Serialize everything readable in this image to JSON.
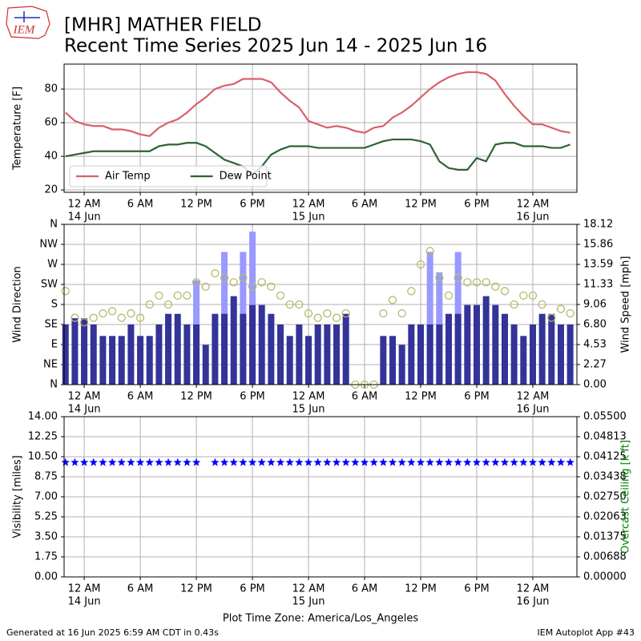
{
  "header": {
    "logo": "IEM",
    "title": "[MHR] MATHER FIELD",
    "subtitle": "Recent Time Series 2025 Jun 14 - 2025 Jun 16"
  },
  "footer": {
    "generated": "Generated at 16 Jun 2025 6:59 AM CDT in 0.43s",
    "app": "IEM Autoplot App #43"
  },
  "chart_data": [
    {
      "type": "line",
      "ylabel": "Temperature [F]",
      "grid": true,
      "legend": "lower left",
      "x": [
        "2025-06-13T22:00",
        "2025-06-13T23:00",
        "2025-06-14T00:00",
        "2025-06-14T01:00",
        "2025-06-14T02:00",
        "2025-06-14T03:00",
        "2025-06-14T04:00",
        "2025-06-14T05:00",
        "2025-06-14T06:00",
        "2025-06-14T07:00",
        "2025-06-14T08:00",
        "2025-06-14T09:00",
        "2025-06-14T10:00",
        "2025-06-14T11:00",
        "2025-06-14T12:00",
        "2025-06-14T13:00",
        "2025-06-14T14:00",
        "2025-06-14T15:00",
        "2025-06-14T16:00",
        "2025-06-14T17:00",
        "2025-06-14T18:00",
        "2025-06-14T19:00",
        "2025-06-14T20:00",
        "2025-06-14T21:00",
        "2025-06-14T22:00",
        "2025-06-14T23:00",
        "2025-06-15T00:00",
        "2025-06-15T01:00",
        "2025-06-15T02:00",
        "2025-06-15T03:00",
        "2025-06-15T04:00",
        "2025-06-15T05:00",
        "2025-06-15T06:00",
        "2025-06-15T07:00",
        "2025-06-15T08:00",
        "2025-06-15T09:00",
        "2025-06-15T10:00",
        "2025-06-15T11:00",
        "2025-06-15T12:00",
        "2025-06-15T13:00",
        "2025-06-15T14:00",
        "2025-06-15T15:00",
        "2025-06-15T16:00",
        "2025-06-15T17:00",
        "2025-06-15T18:00",
        "2025-06-15T19:00",
        "2025-06-15T20:00",
        "2025-06-15T21:00",
        "2025-06-15T22:00",
        "2025-06-15T23:00",
        "2025-06-16T00:00",
        "2025-06-16T01:00",
        "2025-06-16T02:00",
        "2025-06-16T03:00",
        "2025-06-16T04:00"
      ],
      "xlim": [
        "2025-06-13T21:51",
        "2025-06-16T04:43"
      ],
      "xticks": [
        {
          "value": "2025-06-14T00:00",
          "label": "12 AM",
          "sublabel": "14 Jun"
        },
        {
          "value": "2025-06-14T06:00",
          "label": "6 AM"
        },
        {
          "value": "2025-06-14T12:00",
          "label": "12 PM"
        },
        {
          "value": "2025-06-14T18:00",
          "label": "6 PM"
        },
        {
          "value": "2025-06-15T00:00",
          "label": "12 AM",
          "sublabel": "15 Jun"
        },
        {
          "value": "2025-06-15T06:00",
          "label": "6 AM"
        },
        {
          "value": "2025-06-15T12:00",
          "label": "12 PM"
        },
        {
          "value": "2025-06-15T18:00",
          "label": "6 PM"
        },
        {
          "value": "2025-06-16T00:00",
          "label": "12 AM",
          "sublabel": "16 Jun"
        }
      ],
      "ylim": [
        18.6,
        94.8
      ],
      "yticks": [
        20,
        40,
        60,
        80
      ],
      "series": [
        {
          "name": "Air Temp",
          "color": "#d9606a",
          "values": [
            66,
            61,
            59,
            58,
            58,
            56,
            56,
            55,
            53,
            52,
            57,
            60,
            62,
            66,
            71,
            75,
            80,
            82,
            83,
            86,
            86,
            86,
            84,
            78,
            73,
            69,
            61,
            59,
            57,
            58,
            57,
            55,
            54,
            57,
            58,
            63,
            66,
            70,
            75,
            80,
            84,
            87,
            89,
            90,
            90,
            89,
            85,
            77,
            70,
            64,
            59,
            59,
            57,
            55,
            54
          ]
        },
        {
          "name": "Dew Point",
          "color": "#2e6332",
          "values": [
            40,
            41,
            42,
            43,
            43,
            43,
            43,
            43,
            43,
            43,
            46,
            47,
            47,
            48,
            48,
            46,
            42,
            38,
            36,
            34,
            29,
            34,
            41,
            44,
            46,
            46,
            46,
            45,
            45,
            45,
            45,
            45,
            45,
            47,
            49,
            50,
            50,
            50,
            49,
            47,
            37,
            33,
            32,
            32,
            39,
            37,
            47,
            48,
            48,
            46,
            46,
            46,
            45,
            45,
            47
          ]
        }
      ]
    },
    {
      "type": "bar",
      "ylabel": "Wind Direction",
      "y2label": "Wind Speed [mph]",
      "grid": true,
      "x": [
        "2025-06-13T22:00",
        "2025-06-13T23:00",
        "2025-06-14T00:00",
        "2025-06-14T01:00",
        "2025-06-14T02:00",
        "2025-06-14T03:00",
        "2025-06-14T04:00",
        "2025-06-14T05:00",
        "2025-06-14T06:00",
        "2025-06-14T07:00",
        "2025-06-14T08:00",
        "2025-06-14T09:00",
        "2025-06-14T10:00",
        "2025-06-14T11:00",
        "2025-06-14T12:00",
        "2025-06-14T13:00",
        "2025-06-14T14:00",
        "2025-06-14T15:00",
        "2025-06-14T16:00",
        "2025-06-14T17:00",
        "2025-06-14T18:00",
        "2025-06-14T19:00",
        "2025-06-14T20:00",
        "2025-06-14T21:00",
        "2025-06-14T22:00",
        "2025-06-14T23:00",
        "2025-06-15T00:00",
        "2025-06-15T01:00",
        "2025-06-15T02:00",
        "2025-06-15T03:00",
        "2025-06-15T04:00",
        "2025-06-15T05:00",
        "2025-06-15T06:00",
        "2025-06-15T07:00",
        "2025-06-15T08:00",
        "2025-06-15T09:00",
        "2025-06-15T10:00",
        "2025-06-15T11:00",
        "2025-06-15T12:00",
        "2025-06-15T13:00",
        "2025-06-15T14:00",
        "2025-06-15T15:00",
        "2025-06-15T16:00",
        "2025-06-15T17:00",
        "2025-06-15T18:00",
        "2025-06-15T19:00",
        "2025-06-15T20:00",
        "2025-06-15T21:00",
        "2025-06-15T22:00",
        "2025-06-15T23:00",
        "2025-06-16T00:00",
        "2025-06-16T01:00",
        "2025-06-16T02:00",
        "2025-06-16T03:00",
        "2025-06-16T04:00"
      ],
      "xlim": [
        "2025-06-13T21:51",
        "2025-06-16T04:43"
      ],
      "xticks": [
        {
          "value": "2025-06-14T00:00",
          "label": "12 AM",
          "sublabel": "14 Jun"
        },
        {
          "value": "2025-06-14T06:00",
          "label": "6 AM"
        },
        {
          "value": "2025-06-14T12:00",
          "label": "12 PM"
        },
        {
          "value": "2025-06-14T18:00",
          "label": "6 PM"
        },
        {
          "value": "2025-06-15T00:00",
          "label": "12 AM",
          "sublabel": "15 Jun"
        },
        {
          "value": "2025-06-15T06:00",
          "label": "6 AM"
        },
        {
          "value": "2025-06-15T12:00",
          "label": "12 PM"
        },
        {
          "value": "2025-06-15T18:00",
          "label": "6 PM"
        },
        {
          "value": "2025-06-16T00:00",
          "label": "12 AM",
          "sublabel": "16 Jun"
        }
      ],
      "ylim": [
        0,
        360
      ],
      "yticks": [
        {
          "value": 0,
          "label": "N"
        },
        {
          "value": 45,
          "label": "NE"
        },
        {
          "value": 90,
          "label": "E"
        },
        {
          "value": 135,
          "label": "SE"
        },
        {
          "value": 180,
          "label": "S"
        },
        {
          "value": 225,
          "label": "SW"
        },
        {
          "value": 270,
          "label": "W"
        },
        {
          "value": 315,
          "label": "NW"
        },
        {
          "value": 360,
          "label": "N"
        }
      ],
      "y2lim": [
        0,
        18.12
      ],
      "y2ticks": [
        {
          "value": 0,
          "label": "0.00"
        },
        2.27,
        4.53,
        {
          "value": 6.8,
          "label": "6.80"
        },
        9.06,
        11.33,
        13.59,
        15.86,
        18.12
      ],
      "series": [
        {
          "mark": "bar",
          "axis": "y2",
          "color": "#9999ff",
          "values": [
            null,
            null,
            null,
            null,
            null,
            null,
            null,
            null,
            null,
            null,
            null,
            null,
            null,
            null,
            11.8,
            null,
            null,
            15,
            null,
            15,
            17.3,
            null,
            null,
            null,
            null,
            null,
            null,
            null,
            null,
            null,
            null,
            null,
            null,
            null,
            null,
            null,
            null,
            null,
            null,
            15,
            12.7,
            null,
            15,
            null,
            null,
            null,
            null,
            null,
            null,
            null,
            null,
            null,
            null,
            null,
            null
          ]
        },
        {
          "mark": "bar",
          "axis": "y2",
          "color": "#333399",
          "values": [
            6.8,
            7.5,
            7.5,
            6.8,
            5.5,
            5.5,
            5.5,
            6.8,
            5.5,
            5.5,
            6.8,
            8,
            8,
            6.8,
            6.8,
            4.5,
            8,
            8,
            10,
            8,
            9,
            9,
            8,
            6.8,
            5.5,
            6.8,
            5.5,
            6.8,
            6.8,
            6.8,
            8,
            0,
            0,
            0,
            5.5,
            5.5,
            4.5,
            6.8,
            6.8,
            6.8,
            6.8,
            8,
            8,
            9,
            9,
            10,
            9,
            8,
            6.8,
            5.5,
            6.8,
            8,
            8,
            6.8,
            6.8
          ]
        },
        {
          "mark": "scatter",
          "marker": "circle",
          "color": "#b5b86a",
          "values": [
            210,
            150,
            140,
            150,
            160,
            165,
            150,
            160,
            150,
            180,
            200,
            180,
            200,
            200,
            230,
            220,
            250,
            240,
            230,
            240,
            220,
            230,
            220,
            200,
            180,
            180,
            160,
            150,
            160,
            150,
            160,
            0,
            0,
            0,
            160,
            190,
            160,
            210,
            270,
            300,
            240,
            200,
            240,
            230,
            230,
            230,
            220,
            210,
            180,
            200,
            200,
            180,
            150,
            170,
            160
          ]
        }
      ]
    },
    {
      "type": "scatter",
      "ylabel": "Visibility [miles]",
      "y2label": "Overcast Ceiling [k ft]",
      "y2label_color": "#008000",
      "xlabel": "Plot Time Zone: America/Los_Angeles",
      "grid": true,
      "x": [
        "2025-06-13T22:00",
        "2025-06-13T23:00",
        "2025-06-14T00:00",
        "2025-06-14T01:00",
        "2025-06-14T02:00",
        "2025-06-14T03:00",
        "2025-06-14T04:00",
        "2025-06-14T05:00",
        "2025-06-14T06:00",
        "2025-06-14T07:00",
        "2025-06-14T08:00",
        "2025-06-14T09:00",
        "2025-06-14T10:00",
        "2025-06-14T11:00",
        "2025-06-14T12:00",
        "2025-06-14T13:00",
        "2025-06-14T14:00",
        "2025-06-14T15:00",
        "2025-06-14T16:00",
        "2025-06-14T17:00",
        "2025-06-14T18:00",
        "2025-06-14T19:00",
        "2025-06-14T20:00",
        "2025-06-14T21:00",
        "2025-06-14T22:00",
        "2025-06-14T23:00",
        "2025-06-15T00:00",
        "2025-06-15T01:00",
        "2025-06-15T02:00",
        "2025-06-15T03:00",
        "2025-06-15T04:00",
        "2025-06-15T05:00",
        "2025-06-15T06:00",
        "2025-06-15T07:00",
        "2025-06-15T08:00",
        "2025-06-15T09:00",
        "2025-06-15T10:00",
        "2025-06-15T11:00",
        "2025-06-15T12:00",
        "2025-06-15T13:00",
        "2025-06-15T14:00",
        "2025-06-15T15:00",
        "2025-06-15T16:00",
        "2025-06-15T17:00",
        "2025-06-15T18:00",
        "2025-06-15T19:00",
        "2025-06-15T20:00",
        "2025-06-15T21:00",
        "2025-06-15T22:00",
        "2025-06-15T23:00",
        "2025-06-16T00:00",
        "2025-06-16T01:00",
        "2025-06-16T02:00",
        "2025-06-16T03:00",
        "2025-06-16T04:00"
      ],
      "xlim": [
        "2025-06-13T21:51",
        "2025-06-16T04:43"
      ],
      "xticks": [
        {
          "value": "2025-06-14T00:00",
          "label": "12 AM",
          "sublabel": "14 Jun"
        },
        {
          "value": "2025-06-14T06:00",
          "label": "6 AM"
        },
        {
          "value": "2025-06-14T12:00",
          "label": "12 PM"
        },
        {
          "value": "2025-06-14T18:00",
          "label": "6 PM"
        },
        {
          "value": "2025-06-15T00:00",
          "label": "12 AM",
          "sublabel": "15 Jun"
        },
        {
          "value": "2025-06-15T06:00",
          "label": "6 AM"
        },
        {
          "value": "2025-06-15T12:00",
          "label": "12 PM"
        },
        {
          "value": "2025-06-15T18:00",
          "label": "6 PM"
        },
        {
          "value": "2025-06-16T00:00",
          "label": "12 AM",
          "sublabel": "16 Jun"
        }
      ],
      "ylim": [
        0,
        14
      ],
      "yticks": [
        {
          "value": 0,
          "label": "0.00"
        },
        1.75,
        {
          "value": 3.5,
          "label": "3.50"
        },
        5.25,
        {
          "value": 7,
          "label": "7.00"
        },
        8.75,
        {
          "value": 10.5,
          "label": "10.50"
        },
        12.25,
        {
          "value": 14,
          "label": "14.00"
        }
      ],
      "y2lim": [
        0,
        0.055
      ],
      "y2ticks": [
        {
          "value": 0,
          "label": "0.00000"
        },
        {
          "value": 0.006875,
          "label": "0.00688"
        },
        0.01375,
        {
          "value": 0.020625,
          "label": "0.02063"
        },
        {
          "value": 0.0275,
          "label": "0.02750"
        },
        {
          "value": 0.034375,
          "label": "0.03438"
        },
        0.04125,
        {
          "value": 0.048125,
          "label": "0.04813"
        },
        {
          "value": 0.055,
          "label": "0.05500"
        }
      ],
      "series": [
        {
          "mark": "scatter",
          "marker": "star",
          "color": "#0000ff",
          "values": [
            10,
            10,
            10,
            10,
            10,
            10,
            10,
            10,
            10,
            10,
            10,
            10,
            10,
            10,
            10,
            null,
            10,
            10,
            10,
            10,
            10,
            10,
            10,
            10,
            10,
            10,
            10,
            10,
            10,
            10,
            10,
            10,
            10,
            10,
            10,
            10,
            10,
            10,
            10,
            10,
            10,
            10,
            10,
            10,
            10,
            10,
            10,
            10,
            10,
            10,
            10,
            10,
            10,
            10,
            10
          ]
        }
      ]
    }
  ]
}
